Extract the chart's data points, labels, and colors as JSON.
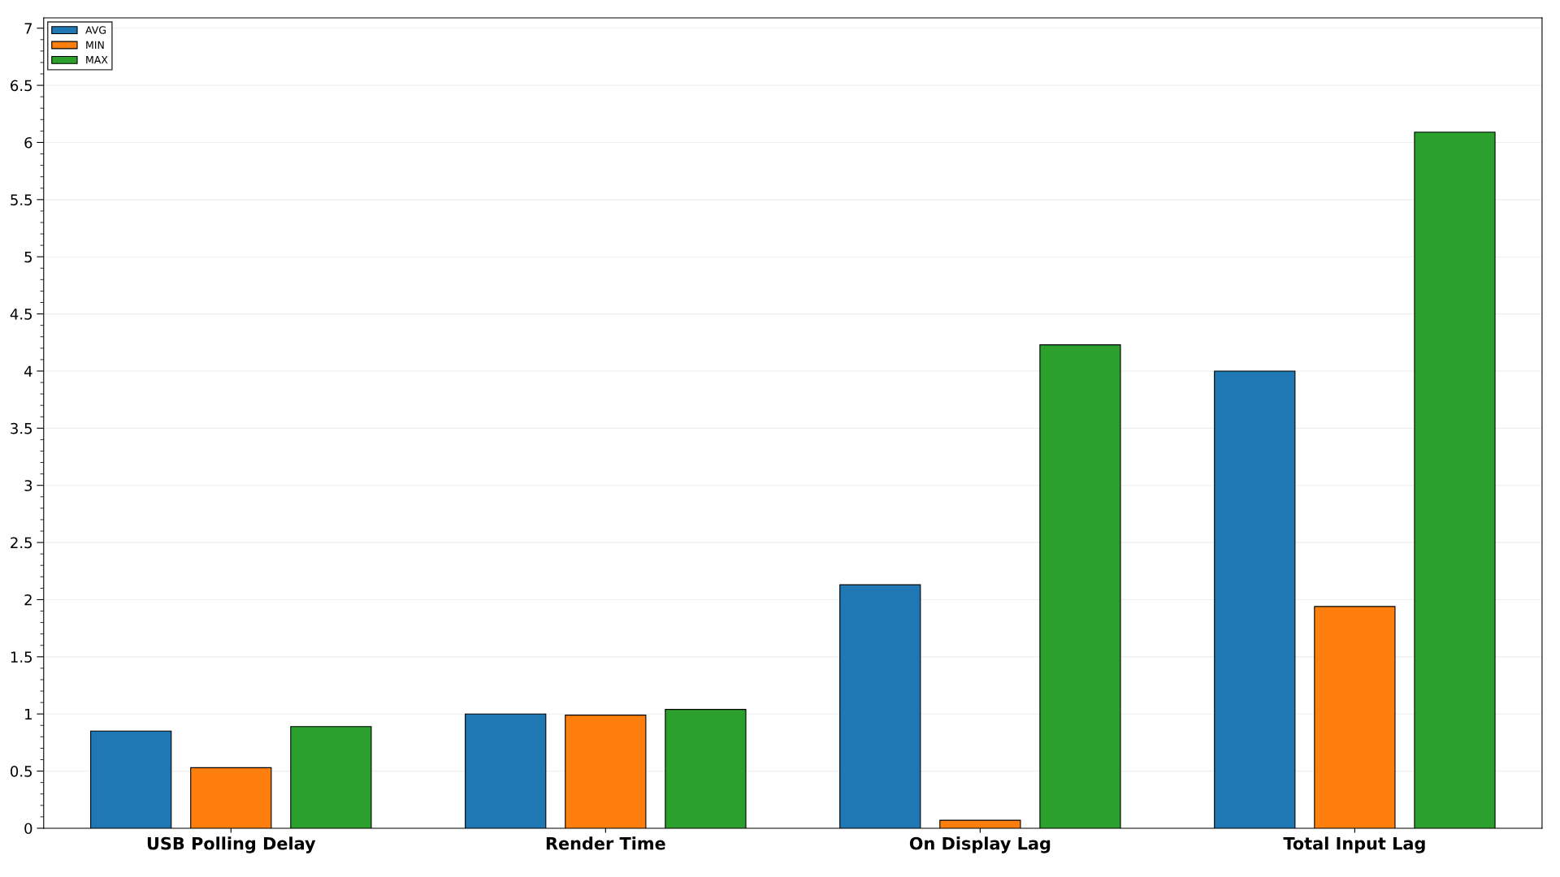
{
  "chart_data": {
    "type": "bar",
    "categories": [
      "USB Polling Delay",
      "Render Time",
      "On Display Lag",
      "Total Input Lag"
    ],
    "series": [
      {
        "name": "AVG",
        "color": "#1f77b4",
        "values": [
          0.85,
          1.0,
          2.13,
          4.0
        ]
      },
      {
        "name": "MIN",
        "color": "#ff7f0e",
        "values": [
          0.53,
          0.99,
          0.07,
          1.94
        ]
      },
      {
        "name": "MAX",
        "color": "#2ca02c",
        "values": [
          0.89,
          1.04,
          4.23,
          6.09
        ]
      }
    ],
    "ylim": [
      0,
      7.09
    ],
    "yticks": [
      0,
      0.5,
      1,
      1.5,
      2,
      2.5,
      3,
      3.5,
      4,
      4.5,
      5,
      5.5,
      6,
      6.5,
      7
    ],
    "grid": "y",
    "legend": "top left"
  }
}
